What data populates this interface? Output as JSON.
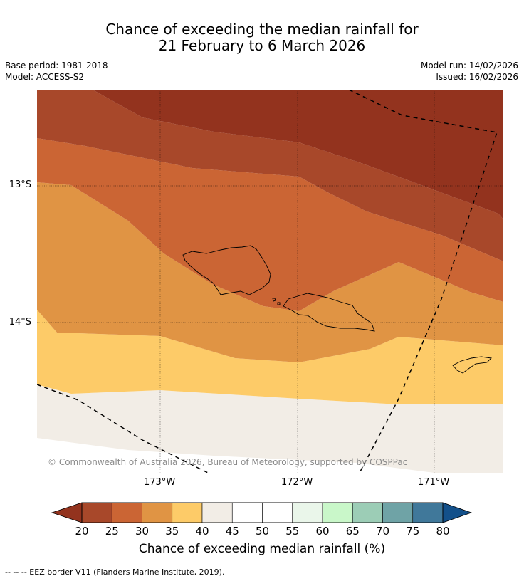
{
  "title": {
    "line1": "Chance of exceeding the median rainfall for",
    "line2": "21 February to 6 March 2026"
  },
  "meta": {
    "base_period": "Base period: 1981-2018",
    "model": "Model: ACCESS-S2",
    "model_run": "Model run: 14/02/2026",
    "issued": "Issued: 16/02/2026"
  },
  "map": {
    "lon_labels": [
      "173°W",
      "172°W",
      "171°W"
    ],
    "lat_labels": [
      "13°S",
      "14°S"
    ],
    "copyright": "© Commonwealth of Australia 2026, Bureau of Meteorology, supported by COSPPac"
  },
  "colorbar": {
    "ticks": [
      "20",
      "25",
      "30",
      "35",
      "40",
      "45",
      "50",
      "55",
      "60",
      "65",
      "70",
      "75",
      "80"
    ],
    "colors": [
      "#a8482a",
      "#cb6534",
      "#e09444",
      "#fdcb68",
      "#f2ede6",
      "#ffffff",
      "#ffffff",
      "#eaf6ea",
      "#c9f7c9",
      "#9ccdb6",
      "#6fa3a6",
      "#40789a"
    ],
    "under_color": "#93331e",
    "over_color": "#13508a",
    "label": "Chance of exceeding median rainfall (%)"
  },
  "footnote": "--  --  -- EEZ border V11 (Flanders Marine Institute, 2019).",
  "zone_colors": {
    "lt20": "#93331e",
    "p20_25": "#a8482a",
    "p25_30": "#cb6534",
    "p30_35": "#e09444",
    "p35_40": "#fdcb68",
    "p40_45": "#f2ede6"
  }
}
